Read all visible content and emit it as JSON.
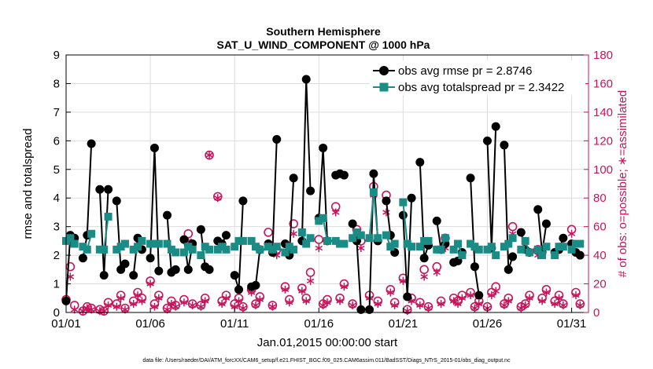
{
  "chart_data": {
    "type": "line",
    "title": "Southern Hemisphere",
    "subtitle": "SAT_U_WIND_COMPONENT @ 1000 hPa",
    "xlabel": "Jan.01,2015 00:00:00 start",
    "ylabel": "rmse and totalspread",
    "ylabel_right": "# of obs: o=possible; ∗=assimilated",
    "footer": "data file: /Users/raeder/DAI/ATM_forcXX/CAM6_setup/f.e21.FHIST_BGC.f09_025.CAM6assim.011/BadSST/Diags_NTrS_2015-01/obs_diag_output.nc",
    "x_ticks": [
      "01/01",
      "01/06",
      "01/11",
      "01/16",
      "01/21",
      "01/26",
      "01/31"
    ],
    "x_tick_days": [
      1,
      6,
      11,
      16,
      21,
      26,
      31
    ],
    "xlim": [
      1,
      32
    ],
    "ylim": [
      0,
      9
    ],
    "y_ticks": [
      0,
      1,
      2,
      3,
      4,
      5,
      6,
      7,
      8,
      9
    ],
    "ylim_right": [
      0,
      180
    ],
    "y_ticks_right": [
      0,
      20,
      40,
      60,
      80,
      100,
      120,
      140,
      160,
      180
    ],
    "legend": [
      "obs avg rmse pr = 2.8746",
      "obs avg totalspread pr = 2.3422"
    ],
    "colors": {
      "rmse": "#000000",
      "spread": "#1a8c86",
      "obs": "#c8145a",
      "grid": "#dcdcdc"
    },
    "series": [
      {
        "name": "obs avg rmse pr = 2.8746",
        "marker": "circle",
        "x": [
          1.0,
          1.25,
          1.5,
          2.0,
          2.25,
          2.5,
          3.0,
          3.25,
          3.5,
          4.0,
          4.25,
          4.5,
          5.0,
          5.25,
          5.5,
          6.0,
          6.25,
          6.5,
          7.0,
          7.25,
          7.5,
          8.0,
          8.25,
          8.5,
          9.0,
          9.25,
          9.5,
          10.0,
          10.25,
          10.5,
          11.0,
          11.25,
          11.5,
          12.0,
          12.25,
          12.5,
          13.0,
          13.25,
          13.5,
          14.0,
          14.25,
          14.5,
          15.0,
          15.25,
          15.5,
          16.0,
          16.25,
          16.5,
          17.0,
          17.25,
          17.5,
          18.0,
          18.25,
          18.5,
          19.0,
          19.25,
          19.5,
          20.0,
          20.25,
          20.5,
          21.0,
          21.25,
          21.5,
          22.0,
          22.25,
          22.5,
          23.0,
          23.25,
          23.5,
          24.0,
          24.25,
          24.5,
          25.0,
          25.25,
          25.5,
          26.0,
          26.25,
          26.5,
          27.0,
          27.25,
          27.5,
          28.0,
          28.25,
          28.5,
          29.0,
          29.25,
          29.5,
          30.0,
          30.25,
          30.5,
          31.0,
          31.25,
          31.5
        ],
        "values": [
          0.4,
          2.7,
          2.6,
          1.9,
          2.7,
          5.9,
          4.3,
          1.3,
          4.3,
          3.9,
          1.5,
          1.7,
          1.3,
          2.6,
          2.2,
          1.9,
          5.75,
          1.45,
          3.4,
          1.4,
          1.5,
          2.55,
          1.5,
          2.4,
          2.9,
          1.6,
          1.5,
          2.5,
          2.4,
          2.7,
          1.3,
          0.8,
          3.9,
          0.9,
          0.95,
          2.2,
          2.4,
          2.1,
          6.05,
          2.4,
          2.0,
          4.7,
          2.5,
          8.15,
          4.25,
          3.3,
          5.75,
          2.5,
          4.8,
          4.85,
          4.8,
          3.1,
          2.5,
          0.1,
          0.1,
          4.85,
          2.5,
          3.9,
          2.7,
          2.1,
          3.4,
          0.55,
          4.0,
          5.25,
          1.9,
          2.35,
          3.2,
          2.2,
          2.4,
          1.75,
          1.8,
          2.1,
          4.7,
          1.6,
          0.6,
          6.0,
          2.25,
          6.5,
          5.85,
          1.5,
          1.95,
          2.8,
          2.2,
          2.1,
          3.6,
          2.1,
          3.1,
          2.1,
          2.2,
          2.6,
          2.4,
          2.1,
          2.0
        ]
      },
      {
        "name": "obs avg totalspread pr = 2.3422",
        "marker": "square",
        "x": [
          1.0,
          1.25,
          1.5,
          2.0,
          2.25,
          2.5,
          3.0,
          3.25,
          3.5,
          4.0,
          4.25,
          4.5,
          5.0,
          5.25,
          5.5,
          6.0,
          6.25,
          6.5,
          7.0,
          7.25,
          7.5,
          8.0,
          8.25,
          8.5,
          9.0,
          9.25,
          9.5,
          10.0,
          10.25,
          10.5,
          11.0,
          11.25,
          11.5,
          12.0,
          12.25,
          12.5,
          13.0,
          13.25,
          13.5,
          14.0,
          14.25,
          14.5,
          15.0,
          15.25,
          15.5,
          16.0,
          16.25,
          16.5,
          17.0,
          17.25,
          17.5,
          18.0,
          18.25,
          18.5,
          19.0,
          19.25,
          19.5,
          20.0,
          20.25,
          20.5,
          21.0,
          21.25,
          21.5,
          22.0,
          22.25,
          22.5,
          23.0,
          23.25,
          23.5,
          24.0,
          24.25,
          24.5,
          25.0,
          25.25,
          25.5,
          26.0,
          26.25,
          26.5,
          27.0,
          27.25,
          27.5,
          28.0,
          28.25,
          28.5,
          29.0,
          29.25,
          29.5,
          30.0,
          30.25,
          30.5,
          31.0,
          31.25,
          31.5
        ],
        "values": [
          2.5,
          2.6,
          2.4,
          2.3,
          2.2,
          2.75,
          2.2,
          2.2,
          3.35,
          2.2,
          2.3,
          2.4,
          2.2,
          2.3,
          2.5,
          2.4,
          2.4,
          2.4,
          2.4,
          2.2,
          2.1,
          2.1,
          2.3,
          2.2,
          2.0,
          2.3,
          2.2,
          2.2,
          2.3,
          2.2,
          2.3,
          2.5,
          2.5,
          2.5,
          2.3,
          2.2,
          2.3,
          2.2,
          2.3,
          2.1,
          2.3,
          2.2,
          2.8,
          2.4,
          2.6,
          3.2,
          3.3,
          2.5,
          2.5,
          2.4,
          2.4,
          2.6,
          2.8,
          2.7,
          2.6,
          4.2,
          2.6,
          2.7,
          2.3,
          2.4,
          3.85,
          2.4,
          2.3,
          2.3,
          2.5,
          2.5,
          2.2,
          2.2,
          2.6,
          2.2,
          2.4,
          2.0,
          2.4,
          2.3,
          2.2,
          2.2,
          2.3,
          2.0,
          2.3,
          2.4,
          2.6,
          2.2,
          2.5,
          2.1,
          2.2,
          2.0,
          2.3,
          2.0,
          2.3,
          2.3,
          2.2,
          2.4,
          2.4
        ]
      },
      {
        "name": "# of obs possible",
        "marker": "open-circle",
        "axis": "right",
        "x": [
          1.0,
          1.25,
          1.5,
          2.0,
          2.25,
          2.5,
          3.0,
          3.25,
          3.5,
          4.0,
          4.25,
          4.5,
          5.0,
          5.25,
          5.5,
          6.0,
          6.25,
          6.5,
          7.0,
          7.25,
          7.5,
          8.0,
          8.25,
          8.5,
          9.0,
          9.25,
          9.5,
          10.0,
          10.25,
          10.5,
          11.0,
          11.25,
          11.5,
          12.0,
          12.25,
          12.5,
          13.0,
          13.25,
          13.5,
          14.0,
          14.25,
          14.5,
          15.0,
          15.25,
          15.5,
          16.0,
          16.25,
          16.5,
          17.0,
          17.25,
          17.5,
          18.0,
          18.25,
          18.5,
          19.0,
          19.25,
          19.5,
          20.0,
          20.25,
          20.5,
          21.0,
          21.25,
          21.5,
          22.0,
          22.25,
          22.5,
          23.0,
          23.25,
          23.5,
          24.0,
          24.25,
          24.5,
          25.0,
          25.25,
          25.5,
          26.0,
          26.25,
          26.5,
          27.0,
          27.25,
          27.5,
          28.0,
          28.25,
          28.5,
          29.0,
          29.25,
          29.5,
          30.0,
          30.25,
          30.5,
          31.0,
          31.25,
          31.5
        ],
        "values": [
          9,
          32,
          5,
          1,
          4,
          3,
          2,
          1,
          7,
          6,
          12,
          3,
          8,
          14,
          10,
          22,
          6,
          12,
          3,
          8,
          5,
          9,
          55,
          6,
          5,
          10,
          110,
          81,
          8,
          12,
          6,
          10,
          4,
          16,
          6,
          11,
          56,
          5,
          44,
          18,
          9,
          62,
          17,
          10,
          28,
          51,
          6,
          9,
          74,
          10,
          20,
          6,
          58,
          50,
          12,
          88,
          8,
          82,
          16,
          7,
          24,
          2,
          10,
          7,
          30,
          4,
          32,
          8,
          52,
          10,
          8,
          12,
          14,
          4,
          8,
          4,
          14,
          18,
          6,
          10,
          60,
          4,
          6,
          12,
          44,
          10,
          16,
          8,
          12,
          6,
          58,
          14,
          6
        ]
      },
      {
        "name": "# of obs assimilated",
        "marker": "asterisk",
        "axis": "right",
        "x": [
          1.0,
          1.25,
          1.5,
          2.0,
          2.25,
          2.5,
          3.0,
          3.25,
          3.5,
          4.0,
          4.25,
          4.5,
          5.0,
          5.25,
          5.5,
          6.0,
          6.25,
          6.5,
          7.0,
          7.25,
          7.5,
          8.0,
          8.25,
          8.5,
          9.0,
          9.25,
          9.5,
          10.0,
          10.25,
          10.5,
          11.0,
          11.25,
          11.5,
          12.0,
          12.25,
          12.5,
          13.0,
          13.25,
          13.5,
          14.0,
          14.25,
          14.5,
          15.0,
          15.25,
          15.5,
          16.0,
          16.25,
          16.5,
          17.0,
          17.25,
          17.5,
          18.0,
          18.25,
          18.5,
          19.0,
          19.25,
          19.5,
          20.0,
          20.25,
          20.5,
          21.0,
          21.25,
          21.5,
          22.0,
          22.25,
          22.5,
          23.0,
          23.25,
          23.5,
          24.0,
          24.25,
          24.5,
          25.0,
          25.25,
          25.5,
          26.0,
          26.25,
          26.5,
          27.0,
          27.25,
          27.5,
          28.0,
          28.25,
          28.5,
          29.0,
          29.25,
          29.5,
          30.0,
          30.25,
          30.5,
          31.0,
          31.25,
          31.5
        ],
        "values": [
          9,
          25,
          2,
          1,
          3,
          2,
          1,
          1,
          5,
          4,
          10,
          2,
          6,
          12,
          8,
          20,
          4,
          10,
          2,
          6,
          4,
          7,
          50,
          5,
          4,
          8,
          110,
          80,
          6,
          10,
          4,
          8,
          3,
          14,
          5,
          9,
          48,
          4,
          40,
          16,
          7,
          55,
          15,
          8,
          22,
          45,
          5,
          7,
          70,
          8,
          18,
          5,
          55,
          45,
          10,
          82,
          6,
          70,
          14,
          5,
          22,
          1,
          8,
          5,
          25,
          3,
          28,
          6,
          45,
          8,
          6,
          10,
          12,
          3,
          6,
          3,
          12,
          15,
          5,
          8,
          55,
          3,
          5,
          10,
          40,
          8,
          14,
          6,
          10,
          5,
          55,
          12,
          5
        ]
      }
    ]
  }
}
